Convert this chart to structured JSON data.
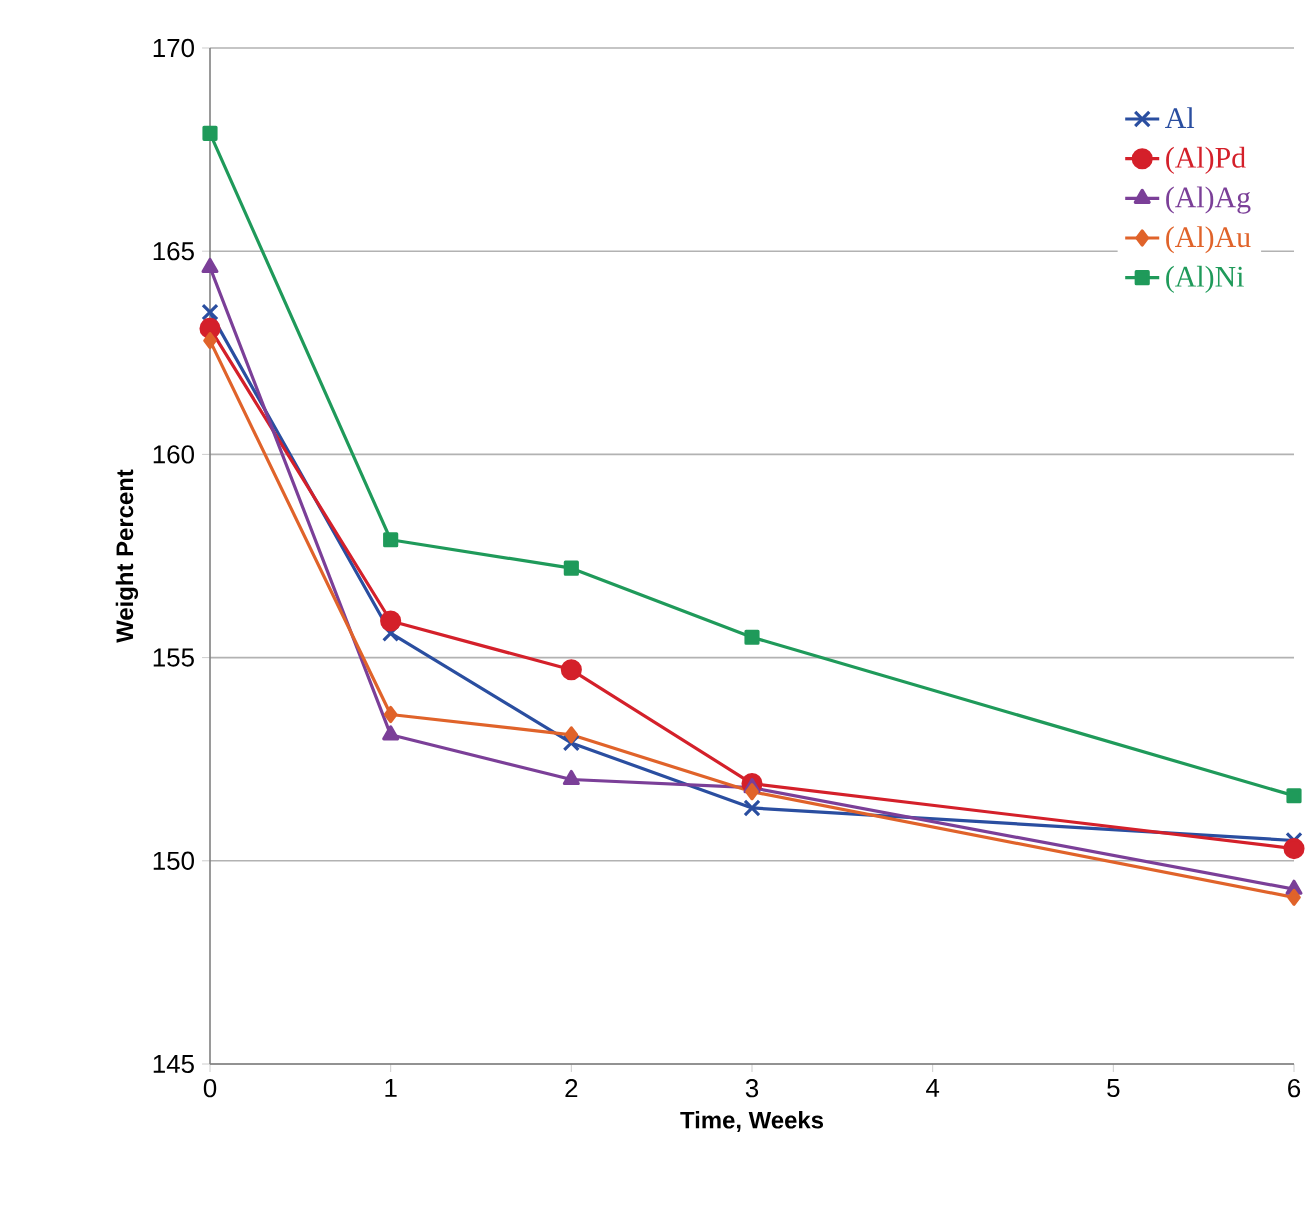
{
  "chart_data": {
    "type": "line",
    "xlabel": "Time, Weeks",
    "ylabel": "Weight Percent",
    "x": [
      0,
      1,
      2,
      3,
      6
    ],
    "series": [
      {
        "name": "Al",
        "color": "#2a4ea0",
        "marker": "cross",
        "values": [
          163.5,
          155.6,
          152.9,
          151.3,
          150.5
        ]
      },
      {
        "name": "(Al)Pd",
        "color": "#d4202a",
        "marker": "circle",
        "values": [
          163.1,
          155.9,
          154.7,
          151.9,
          150.3
        ]
      },
      {
        "name": "(Al)Ag",
        "color": "#7b3f98",
        "marker": "triangle",
        "values": [
          164.6,
          153.1,
          152.0,
          151.8,
          149.3
        ]
      },
      {
        "name": "(Al)Au",
        "color": "#e0632a",
        "marker": "diamond",
        "values": [
          162.8,
          153.6,
          153.1,
          151.7,
          149.1
        ]
      },
      {
        "name": "(Al)Ni",
        "color": "#1f9a5a",
        "marker": "square",
        "values": [
          167.9,
          157.9,
          157.2,
          155.5,
          151.6
        ]
      }
    ],
    "xlim": [
      0,
      6
    ],
    "xticks": [
      0,
      1,
      2,
      3,
      4,
      5,
      6
    ],
    "ylim": [
      145,
      170
    ],
    "yticks": [
      145,
      150,
      155,
      160,
      165,
      170
    ],
    "grid": "y",
    "legend": "top right",
    "line_style": "solid"
  }
}
